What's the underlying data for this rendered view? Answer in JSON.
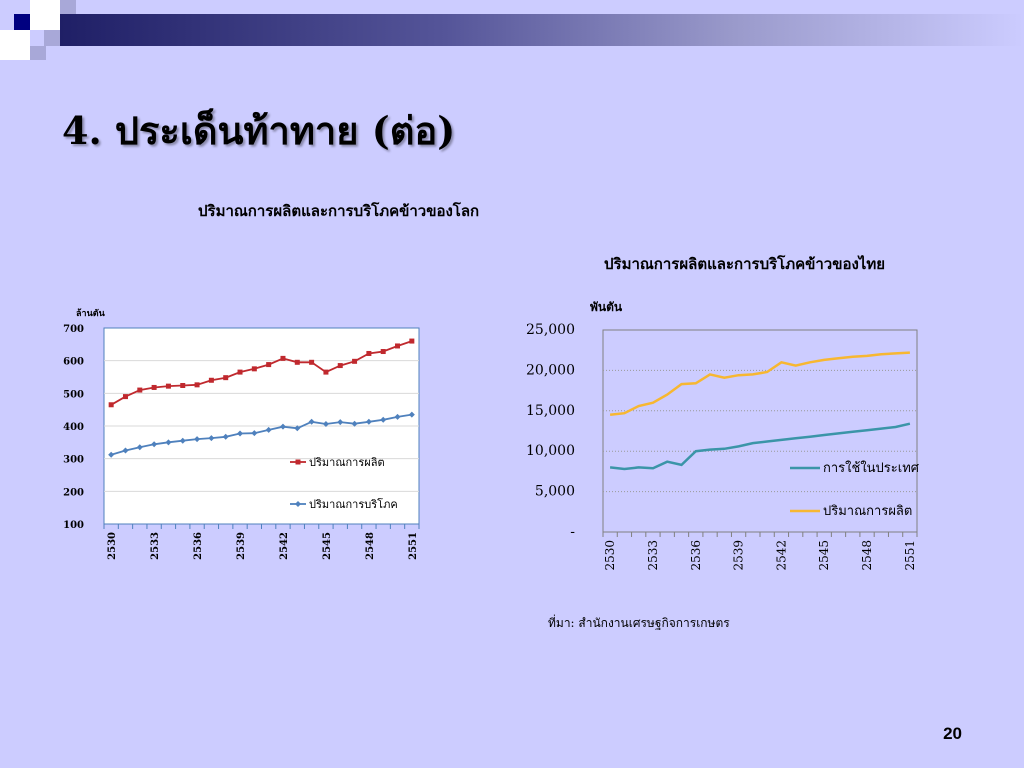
{
  "slide": {
    "title": "4. ประเด็นท้าทาย (ต่อ)",
    "page_number": "20",
    "source": "ที่มา: สำนักงานเศรษฐกิจการเกษตร"
  },
  "chart_data": [
    {
      "type": "line",
      "title": "ปริมาณการผลิตและการบริโภคข้าวของโลก",
      "ylabel": "ล้านตัน",
      "ylim": [
        100,
        700
      ],
      "yticks": [
        "100",
        "200",
        "300",
        "400",
        "500",
        "600",
        "700"
      ],
      "x": [
        2530,
        2531,
        2532,
        2533,
        2534,
        2535,
        2536,
        2537,
        2538,
        2539,
        2540,
        2541,
        2542,
        2543,
        2544,
        2545,
        2546,
        2547,
        2548,
        2549,
        2550,
        2551
      ],
      "xtick_labels": [
        "2530",
        "2533",
        "2536",
        "2539",
        "2542",
        "2545",
        "2548",
        "2551"
      ],
      "grid": true,
      "legend": "right",
      "series": [
        {
          "name": "ปริมาณการผลิต",
          "color": "#c0292e",
          "marker": "square",
          "values": [
            465,
            490,
            510,
            518,
            522,
            524,
            526,
            540,
            548,
            565,
            575,
            588,
            607,
            595,
            595,
            565,
            585,
            598,
            622,
            628,
            645,
            660
          ]
        },
        {
          "name": "ปริมาณการบริโภค",
          "color": "#4f81bd",
          "marker": "diamond",
          "values": [
            312,
            325,
            335,
            344,
            350,
            355,
            360,
            363,
            367,
            377,
            378,
            388,
            398,
            393,
            413,
            406,
            412,
            407,
            413,
            419,
            428,
            435
          ]
        }
      ]
    },
    {
      "type": "line",
      "title": "ปริมาณการผลิตและการบริโภคข้าวของไทย",
      "ylabel": "พันตัน",
      "ylim": [
        0,
        25000
      ],
      "yticks": [
        "-",
        "5,000",
        "10,000",
        "15,000",
        "20,000",
        "25,000"
      ],
      "x": [
        2530,
        2531,
        2532,
        2533,
        2534,
        2535,
        2536,
        2537,
        2538,
        2539,
        2540,
        2541,
        2542,
        2543,
        2544,
        2545,
        2546,
        2547,
        2548,
        2549,
        2550,
        2551
      ],
      "xtick_labels": [
        "2530",
        "2533",
        "2536",
        "2539",
        "2542",
        "2545",
        "2548",
        "2551"
      ],
      "grid": true,
      "legend": "bottom-right",
      "series": [
        {
          "name": "การใช้ในประเทศ",
          "color": "#3b95a8",
          "values": [
            8000,
            7800,
            8000,
            7900,
            8700,
            8300,
            10000,
            10200,
            10300,
            10600,
            11000,
            11200,
            11400,
            11600,
            11800,
            12000,
            12200,
            12400,
            12600,
            12800,
            13000,
            13400
          ]
        },
        {
          "name": "ปริมาณการผลิต",
          "color": "#f7b731",
          "values": [
            14500,
            14700,
            15600,
            16000,
            17000,
            18300,
            18400,
            19500,
            19100,
            19400,
            19500,
            19800,
            21000,
            20600,
            21000,
            21300,
            21500,
            21700,
            21800,
            22000,
            22100,
            22200
          ]
        }
      ]
    }
  ]
}
